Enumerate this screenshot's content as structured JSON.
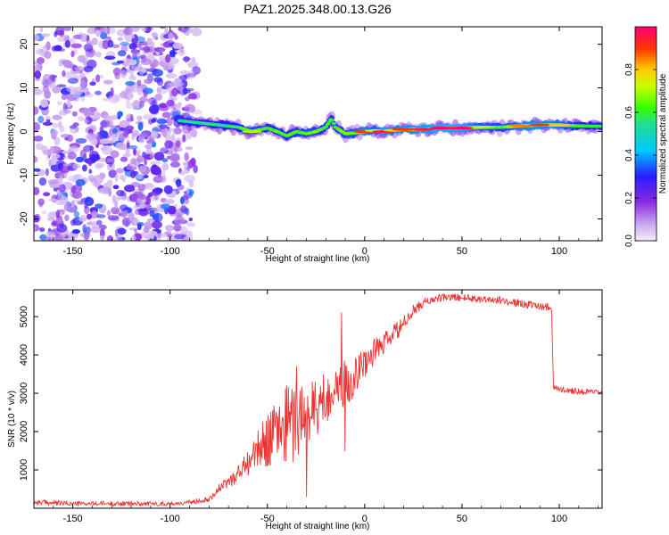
{
  "title": "PAZ1.2025.348.00.13.G26",
  "chart_data": [
    {
      "type": "heatmap",
      "name": "spectrogram",
      "xlabel": "Height of straight line (km)",
      "ylabel": "Frequency (Hz)",
      "xlim": [
        -170,
        122
      ],
      "ylim": [
        -25,
        24
      ],
      "xticks": [
        -150,
        -100,
        -50,
        0,
        50,
        100
      ],
      "yticks": [
        -20,
        -10,
        0,
        10,
        20
      ],
      "noise_region_x": [
        -170,
        -88
      ],
      "ridge": {
        "x": [
          -95,
          -85,
          -75,
          -65,
          -58,
          -50,
          -45,
          -40,
          -35,
          -30,
          -25,
          -20,
          -17,
          -15,
          -10,
          -5,
          0,
          5,
          10,
          15,
          20,
          30,
          40,
          50,
          60,
          70,
          80,
          90,
          100,
          110,
          122
        ],
        "freq": [
          2.5,
          2,
          1.5,
          1,
          0,
          0.8,
          0,
          -1,
          0,
          -0.5,
          0,
          1,
          3,
          1,
          -0.5,
          -0.3,
          0,
          0.2,
          0,
          0.3,
          0.5,
          0.5,
          0.8,
          0.8,
          1,
          1,
          1.3,
          1.5,
          1.5,
          1.3,
          1.2
        ],
        "amplitude": [
          0.3,
          0.35,
          0.4,
          0.45,
          0.7,
          0.5,
          0.55,
          0.5,
          0.55,
          0.6,
          0.6,
          0.45,
          0.5,
          0.5,
          0.6,
          0.65,
          0.9,
          0.7,
          0.95,
          0.8,
          0.9,
          0.95,
          1.0,
          1.0,
          0.7,
          0.55,
          0.85,
          0.9,
          0.8,
          0.5,
          0.4
        ]
      },
      "colorbar": {
        "label": "Normalized spectral amplitude",
        "ticks": [
          0,
          0.2,
          0.4,
          0.6,
          0.8
        ],
        "tick_labels": [
          "0.0",
          "0.2",
          "0.4",
          "0.6",
          "0.8"
        ],
        "range": [
          0,
          1
        ]
      }
    },
    {
      "type": "line",
      "name": "snr",
      "xlabel": "Height of straight line (km)",
      "ylabel": "SNR (10 * v/v)",
      "xlim": [
        -170,
        122
      ],
      "ylim": [
        0,
        5700
      ],
      "xticks": [
        -150,
        -100,
        -50,
        0,
        50,
        100
      ],
      "yticks": [
        1000,
        2000,
        3000,
        4000,
        5000
      ],
      "series": [
        {
          "name": "SNR",
          "color": "#ee3333",
          "x": [
            -170,
            -150,
            -100,
            -90,
            -80,
            -75,
            -70,
            -65,
            -60,
            -55,
            -50,
            -45,
            -40,
            -35,
            -30,
            -25,
            -20,
            -15,
            -10,
            -5,
            0,
            5,
            10,
            15,
            20,
            25,
            30,
            35,
            40,
            45,
            50,
            55,
            60,
            65,
            70,
            75,
            80,
            85,
            90,
            96,
            97,
            100,
            105,
            110,
            115,
            122
          ],
          "values": [
            160,
            120,
            120,
            150,
            250,
            500,
            700,
            900,
            1200,
            1500,
            1800,
            2000,
            2200,
            2300,
            2400,
            2600,
            2900,
            3100,
            3200,
            3500,
            3800,
            4100,
            4300,
            4550,
            4800,
            5150,
            5350,
            5450,
            5500,
            5500,
            5500,
            5480,
            5460,
            5450,
            5420,
            5380,
            5350,
            5300,
            5280,
            5250,
            3150,
            3100,
            3080,
            3050,
            3030,
            3000
          ],
          "noise_amplitude": [
            80,
            60,
            60,
            60,
            80,
            120,
            150,
            250,
            350,
            500,
            700,
            900,
            1000,
            1100,
            1000,
            900,
            700,
            500,
            700,
            500,
            400,
            350,
            300,
            250,
            200,
            150,
            120,
            100,
            100,
            100,
            100,
            100,
            100,
            100,
            100,
            100,
            100,
            100,
            100,
            100,
            90,
            80,
            80,
            80,
            80,
            80
          ]
        }
      ],
      "spikes": [
        {
          "x": -12,
          "value": 5100
        },
        {
          "x": -10,
          "value": 1500
        },
        {
          "x": -35,
          "value": 3700
        },
        {
          "x": -30,
          "value": 300
        },
        {
          "x": -40,
          "value": 3200
        }
      ]
    }
  ]
}
